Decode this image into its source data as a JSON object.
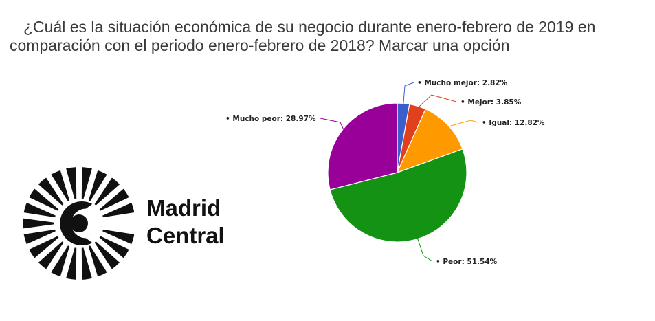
{
  "title_line1": "¿Cuál es la situación económica de su negocio durante enero-febrero de 2019 en",
  "title_line2": "comparación con el periodo enero-febrero de 2018? Marcar una opción",
  "brand": {
    "line1": "Madrid",
    "line2": "Central"
  },
  "chart_data": {
    "type": "pie",
    "title": "¿Cuál es la situación económica de su negocio durante enero-febrero de 2019 en comparación con el periodo enero-febrero de 2018? Marcar una opción",
    "slices": [
      {
        "label": "Mucho mejor",
        "value": 2.82,
        "display": "Mucho mejor: 2.82%",
        "color": "#3a5fcd"
      },
      {
        "label": "Mejor",
        "value": 3.85,
        "display": "Mejor: 3.85%",
        "color": "#e0401c"
      },
      {
        "label": "Igual",
        "value": 12.82,
        "display": "Igual: 12.82%",
        "color": "#ff9900"
      },
      {
        "label": "Peor",
        "value": 51.54,
        "display": "Peor: 51.54%",
        "color": "#149214"
      },
      {
        "label": "Mucho peor",
        "value": 28.97,
        "display": "Mucho peor: 28.97%",
        "color": "#990099"
      }
    ]
  }
}
